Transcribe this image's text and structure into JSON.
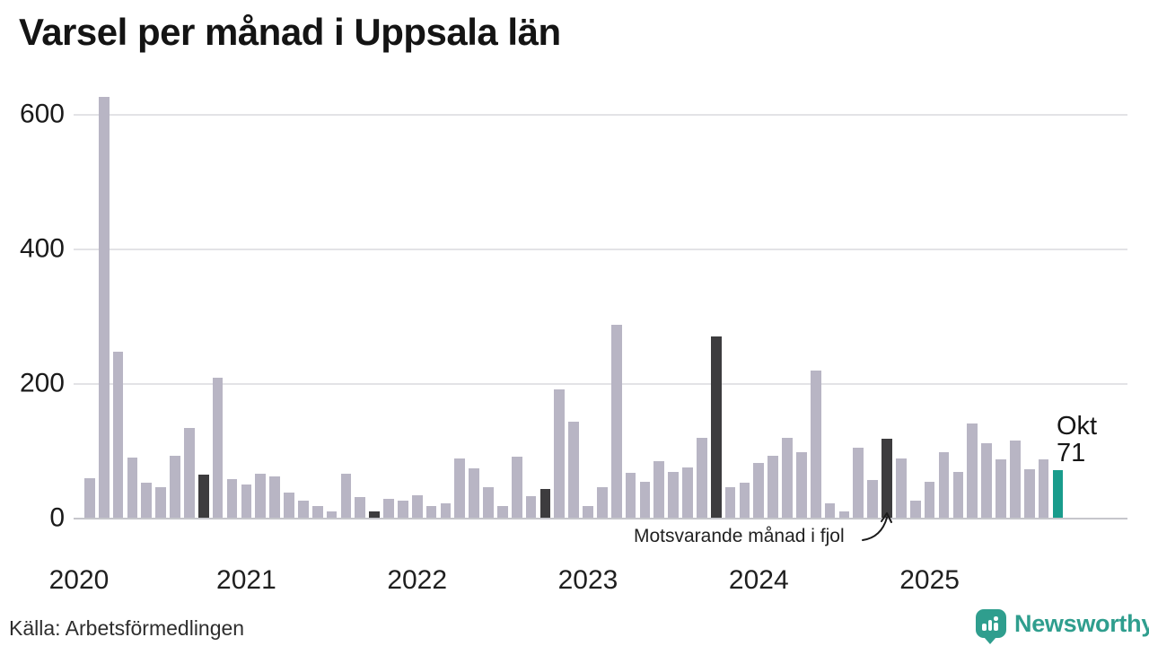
{
  "title": "Varsel per månad i Uppsala län",
  "source": "Källa: Arbetsförmedlingen",
  "annotation": {
    "text": "Motsvarande månad i fjol"
  },
  "current_point": {
    "label": "Okt",
    "value": "71"
  },
  "logo": {
    "name": "Newsworthy"
  },
  "colors": {
    "bar": "#b8b5c4",
    "highlight_fjol": "#3d3c3e",
    "current": "#199c8c",
    "brand": "#2f9e8e",
    "grid": "#e3e3e6",
    "axis_line": "#c6c6cb"
  },
  "chart_data": {
    "type": "bar",
    "title": "Varsel per månad i Uppsala län",
    "xlabel": "",
    "ylabel": "",
    "ylim": [
      0,
      650
    ],
    "yticks": [
      0,
      200,
      400,
      600
    ],
    "grid": true,
    "legend": "none",
    "year_tick_labels": [
      "2020",
      "2021",
      "2022",
      "2023",
      "2024",
      "2025"
    ],
    "highlight_meaning": "Dark bars = Motsvarande månad i fjol (Okt each year); teal bar = current month Okt 2025 = 71",
    "months": [
      {
        "y": 2020,
        "m": "Feb",
        "v": 59,
        "k": "normal"
      },
      {
        "y": 2020,
        "m": "Mar",
        "v": 626,
        "k": "normal"
      },
      {
        "y": 2020,
        "m": "Apr",
        "v": 247,
        "k": "normal"
      },
      {
        "y": 2020,
        "m": "Maj",
        "v": 90,
        "k": "normal"
      },
      {
        "y": 2020,
        "m": "Jun",
        "v": 52,
        "k": "normal"
      },
      {
        "y": 2020,
        "m": "Jul",
        "v": 46,
        "k": "normal"
      },
      {
        "y": 2020,
        "m": "Aug",
        "v": 92,
        "k": "normal"
      },
      {
        "y": 2020,
        "m": "Sep",
        "v": 133,
        "k": "normal"
      },
      {
        "y": 2020,
        "m": "Okt",
        "v": 64,
        "k": "fjol"
      },
      {
        "y": 2020,
        "m": "Nov",
        "v": 208,
        "k": "normal"
      },
      {
        "y": 2020,
        "m": "Dec",
        "v": 57,
        "k": "normal"
      },
      {
        "y": 2021,
        "m": "Jan",
        "v": 50,
        "k": "normal"
      },
      {
        "y": 2021,
        "m": "Feb",
        "v": 66,
        "k": "normal"
      },
      {
        "y": 2021,
        "m": "Mar",
        "v": 62,
        "k": "normal"
      },
      {
        "y": 2021,
        "m": "Apr",
        "v": 38,
        "k": "normal"
      },
      {
        "y": 2021,
        "m": "Maj",
        "v": 25,
        "k": "normal"
      },
      {
        "y": 2021,
        "m": "Jun",
        "v": 18,
        "k": "normal"
      },
      {
        "y": 2021,
        "m": "Jul",
        "v": 9,
        "k": "normal"
      },
      {
        "y": 2021,
        "m": "Aug",
        "v": 66,
        "k": "normal"
      },
      {
        "y": 2021,
        "m": "Sep",
        "v": 31,
        "k": "normal"
      },
      {
        "y": 2021,
        "m": "Okt",
        "v": 9,
        "k": "fjol"
      },
      {
        "y": 2021,
        "m": "Nov",
        "v": 28,
        "k": "normal"
      },
      {
        "y": 2021,
        "m": "Dec",
        "v": 25,
        "k": "normal"
      },
      {
        "y": 2022,
        "m": "Jan",
        "v": 33,
        "k": "normal"
      },
      {
        "y": 2022,
        "m": "Feb",
        "v": 18,
        "k": "normal"
      },
      {
        "y": 2022,
        "m": "Mar",
        "v": 21,
        "k": "normal"
      },
      {
        "y": 2022,
        "m": "Apr",
        "v": 88,
        "k": "normal"
      },
      {
        "y": 2022,
        "m": "Maj",
        "v": 73,
        "k": "normal"
      },
      {
        "y": 2022,
        "m": "Jun",
        "v": 45,
        "k": "normal"
      },
      {
        "y": 2022,
        "m": "Jul",
        "v": 18,
        "k": "normal"
      },
      {
        "y": 2022,
        "m": "Aug",
        "v": 91,
        "k": "normal"
      },
      {
        "y": 2022,
        "m": "Sep",
        "v": 32,
        "k": "normal"
      },
      {
        "y": 2022,
        "m": "Okt",
        "v": 43,
        "k": "fjol"
      },
      {
        "y": 2022,
        "m": "Nov",
        "v": 191,
        "k": "normal"
      },
      {
        "y": 2022,
        "m": "Dec",
        "v": 143,
        "k": "normal"
      },
      {
        "y": 2023,
        "m": "Jan",
        "v": 17,
        "k": "normal"
      },
      {
        "y": 2023,
        "m": "Feb",
        "v": 46,
        "k": "normal"
      },
      {
        "y": 2023,
        "m": "Mar",
        "v": 287,
        "k": "normal"
      },
      {
        "y": 2023,
        "m": "Apr",
        "v": 67,
        "k": "normal"
      },
      {
        "y": 2023,
        "m": "Maj",
        "v": 53,
        "k": "normal"
      },
      {
        "y": 2023,
        "m": "Jun",
        "v": 84,
        "k": "normal"
      },
      {
        "y": 2023,
        "m": "Jul",
        "v": 68,
        "k": "normal"
      },
      {
        "y": 2023,
        "m": "Aug",
        "v": 75,
        "k": "normal"
      },
      {
        "y": 2023,
        "m": "Sep",
        "v": 119,
        "k": "normal"
      },
      {
        "y": 2023,
        "m": "Okt",
        "v": 270,
        "k": "fjol"
      },
      {
        "y": 2023,
        "m": "Nov",
        "v": 45,
        "k": "normal"
      },
      {
        "y": 2023,
        "m": "Dec",
        "v": 52,
        "k": "normal"
      },
      {
        "y": 2024,
        "m": "Jan",
        "v": 82,
        "k": "normal"
      },
      {
        "y": 2024,
        "m": "Feb",
        "v": 92,
        "k": "normal"
      },
      {
        "y": 2024,
        "m": "Mar",
        "v": 119,
        "k": "normal"
      },
      {
        "y": 2024,
        "m": "Apr",
        "v": 98,
        "k": "normal"
      },
      {
        "y": 2024,
        "m": "Maj",
        "v": 219,
        "k": "normal"
      },
      {
        "y": 2024,
        "m": "Jun",
        "v": 22,
        "k": "normal"
      },
      {
        "y": 2024,
        "m": "Jul",
        "v": 9,
        "k": "normal"
      },
      {
        "y": 2024,
        "m": "Aug",
        "v": 104,
        "k": "normal"
      },
      {
        "y": 2024,
        "m": "Sep",
        "v": 56,
        "k": "normal"
      },
      {
        "y": 2024,
        "m": "Okt",
        "v": 118,
        "k": "fjol"
      },
      {
        "y": 2024,
        "m": "Nov",
        "v": 88,
        "k": "normal"
      },
      {
        "y": 2024,
        "m": "Dec",
        "v": 26,
        "k": "normal"
      },
      {
        "y": 2025,
        "m": "Jan",
        "v": 54,
        "k": "normal"
      },
      {
        "y": 2025,
        "m": "Feb",
        "v": 97,
        "k": "normal"
      },
      {
        "y": 2025,
        "m": "Mar",
        "v": 68,
        "k": "normal"
      },
      {
        "y": 2025,
        "m": "Apr",
        "v": 140,
        "k": "normal"
      },
      {
        "y": 2025,
        "m": "Maj",
        "v": 111,
        "k": "normal"
      },
      {
        "y": 2025,
        "m": "Jun",
        "v": 87,
        "k": "normal"
      },
      {
        "y": 2025,
        "m": "Jul",
        "v": 115,
        "k": "normal"
      },
      {
        "y": 2025,
        "m": "Aug",
        "v": 72,
        "k": "normal"
      },
      {
        "y": 2025,
        "m": "Sep",
        "v": 87,
        "k": "normal"
      },
      {
        "y": 2025,
        "m": "Okt",
        "v": 71,
        "k": "current"
      }
    ]
  }
}
